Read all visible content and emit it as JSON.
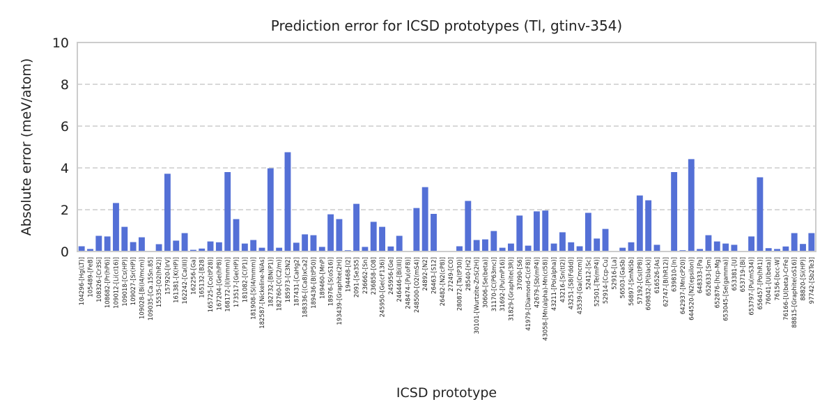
{
  "chart_data": {
    "type": "bar",
    "title": "Prediction error for ICSD prototypes (Tl, gtinv-354)",
    "xlabel": "ICSD prototype",
    "ylabel": "Absolute error (meV/atom)",
    "ylim": [
      0,
      10
    ],
    "yticks": [
      0,
      2,
      4,
      6,
      8,
      10
    ],
    "grid": true,
    "color": "#5470d6",
    "categories": [
      "104296-[Hg(LT)]",
      "105489-[FeB]",
      "108326-[Cr3Si]",
      "108682-[Pr(hP6)]",
      "109012-[Li(cI16)]",
      "109018-[Cs(HP)]",
      "109027-[Sr(HP)]",
      "109028-[Bi(I4/mcm)]",
      "109035-[Ca.15Sn.85]",
      "15535-[O2(hR2)]",
      "157920-[IrV]",
      "161381-[K(HP)]",
      "162242-[Ca(III)]",
      "162256-[Ga]",
      "165132-[B28]",
      "165725-[Co(tP28)]",
      "167204-[Ge(hP8)]",
      "168172-[I(Immm)]",
      "173517-[Ge(HP)]",
      "181082-[C(P1)]",
      "181908-[S(I4/mmm)]",
      "182587-[Nickeline-NiAs]",
      "182732-[BN(P1)]",
      "182760-[C(C2/m)]",
      "185973-[C3N2]",
      "187431-[CaHg2]",
      "188336-[(Ca8)xCa2]",
      "189436-[B(tP50)]",
      "189460-[MnP]",
      "18976-[S(oS16)]",
      "193439-[Graphite(2H)]",
      "194468-[I2]",
      "2091-[Se3S5]",
      "236662-[Sn]",
      "236858-[O8]",
      "245950-[Ge(cF136)]",
      "245956-[Ge]",
      "246446-[Bi(III)]",
      "248474-[Pu(oF8)]",
      "248500-[O2(mS4)]",
      "24892-[N2]",
      "26463-[S12]",
      "26482-[N2(cP8)]",
      "27249-[CO]",
      "280872-[Ta(tP30)]",
      "28540-[H2]",
      "30101-[Wurtzite-ZnS(2H)]",
      "30606-[Se(beta)]",
      "31170-[C(P63mc)]",
      "31692-[Pu(mP16)]",
      "31829-[Graphite(3R)]",
      "37090-[S6]",
      "41979-[Diamond-C(cF8)]",
      "42679-[Sb(mP4)]",
      "43058-[Mn(alpha)-Mn(cI58)]",
      "43211-[Po(alpha)]",
      "43216-[Sn(tI2)]",
      "43251-[S8(Fddd)]",
      "43539-[Ga(Cmcm)]",
      "52412-[Sc]",
      "52501-[Te(mP4)]",
      "52914-[Ccp-Cu]",
      "52916-[La]",
      "56503-[GaSb]",
      "56897-[SmNiSb]",
      "57192-[Cs(tP8)]",
      "609832-[P(black)]",
      "616526-[As]",
      "62747-[B(hR12)]",
      "639810-[In]",
      "642937-[Mn(cP20)]",
      "644520-[N2(epsilon)]",
      "648333-[Pa]",
      "652633-[Sm]",
      "652876-[hcp-Mg]",
      "653045-[Se(gamma)]",
      "653381-[U]",
      "653719-[Bi]",
      "653797-[Pu(mS34)]",
      "656457-[Po(hR1)]",
      "76041-[U(beta)]",
      "76156-[bcc-W]",
      "76166-[U(beta)-CrFe]",
      "88815-[Graphite(oS16)]",
      "88820-[Si(HP)]",
      "97742-[Sb2Te3]"
    ],
    "values": [
      0.25,
      0.12,
      0.75,
      0.72,
      2.32,
      1.18,
      0.45,
      0.68,
      0.0,
      0.35,
      3.72,
      0.52,
      0.88,
      0.08,
      0.14,
      0.48,
      0.44,
      3.8,
      1.55,
      0.38,
      0.55,
      0.18,
      3.98,
      0.18,
      4.75,
      0.42,
      0.82,
      0.78,
      0.22,
      1.78,
      1.55,
      0.06,
      2.28,
      0.22,
      1.42,
      1.18,
      0.24,
      0.75,
      0.0,
      2.08,
      3.08,
      1.8,
      0.0,
      0.0,
      0.25,
      2.42,
      0.55,
      0.58,
      0.98,
      0.18,
      0.38,
      1.72,
      0.28,
      1.92,
      1.96,
      0.38,
      0.92,
      0.44,
      0.25,
      1.85,
      0.62,
      1.08,
      0.0,
      0.18,
      0.44,
      2.68,
      2.45,
      0.32,
      0.0,
      3.8,
      0.06,
      4.42,
      0.12,
      0.78,
      0.48,
      0.38,
      0.32,
      0.0,
      0.72,
      3.55,
      0.16,
      0.12,
      0.24,
      0.88,
      0.36,
      0.88
    ]
  }
}
